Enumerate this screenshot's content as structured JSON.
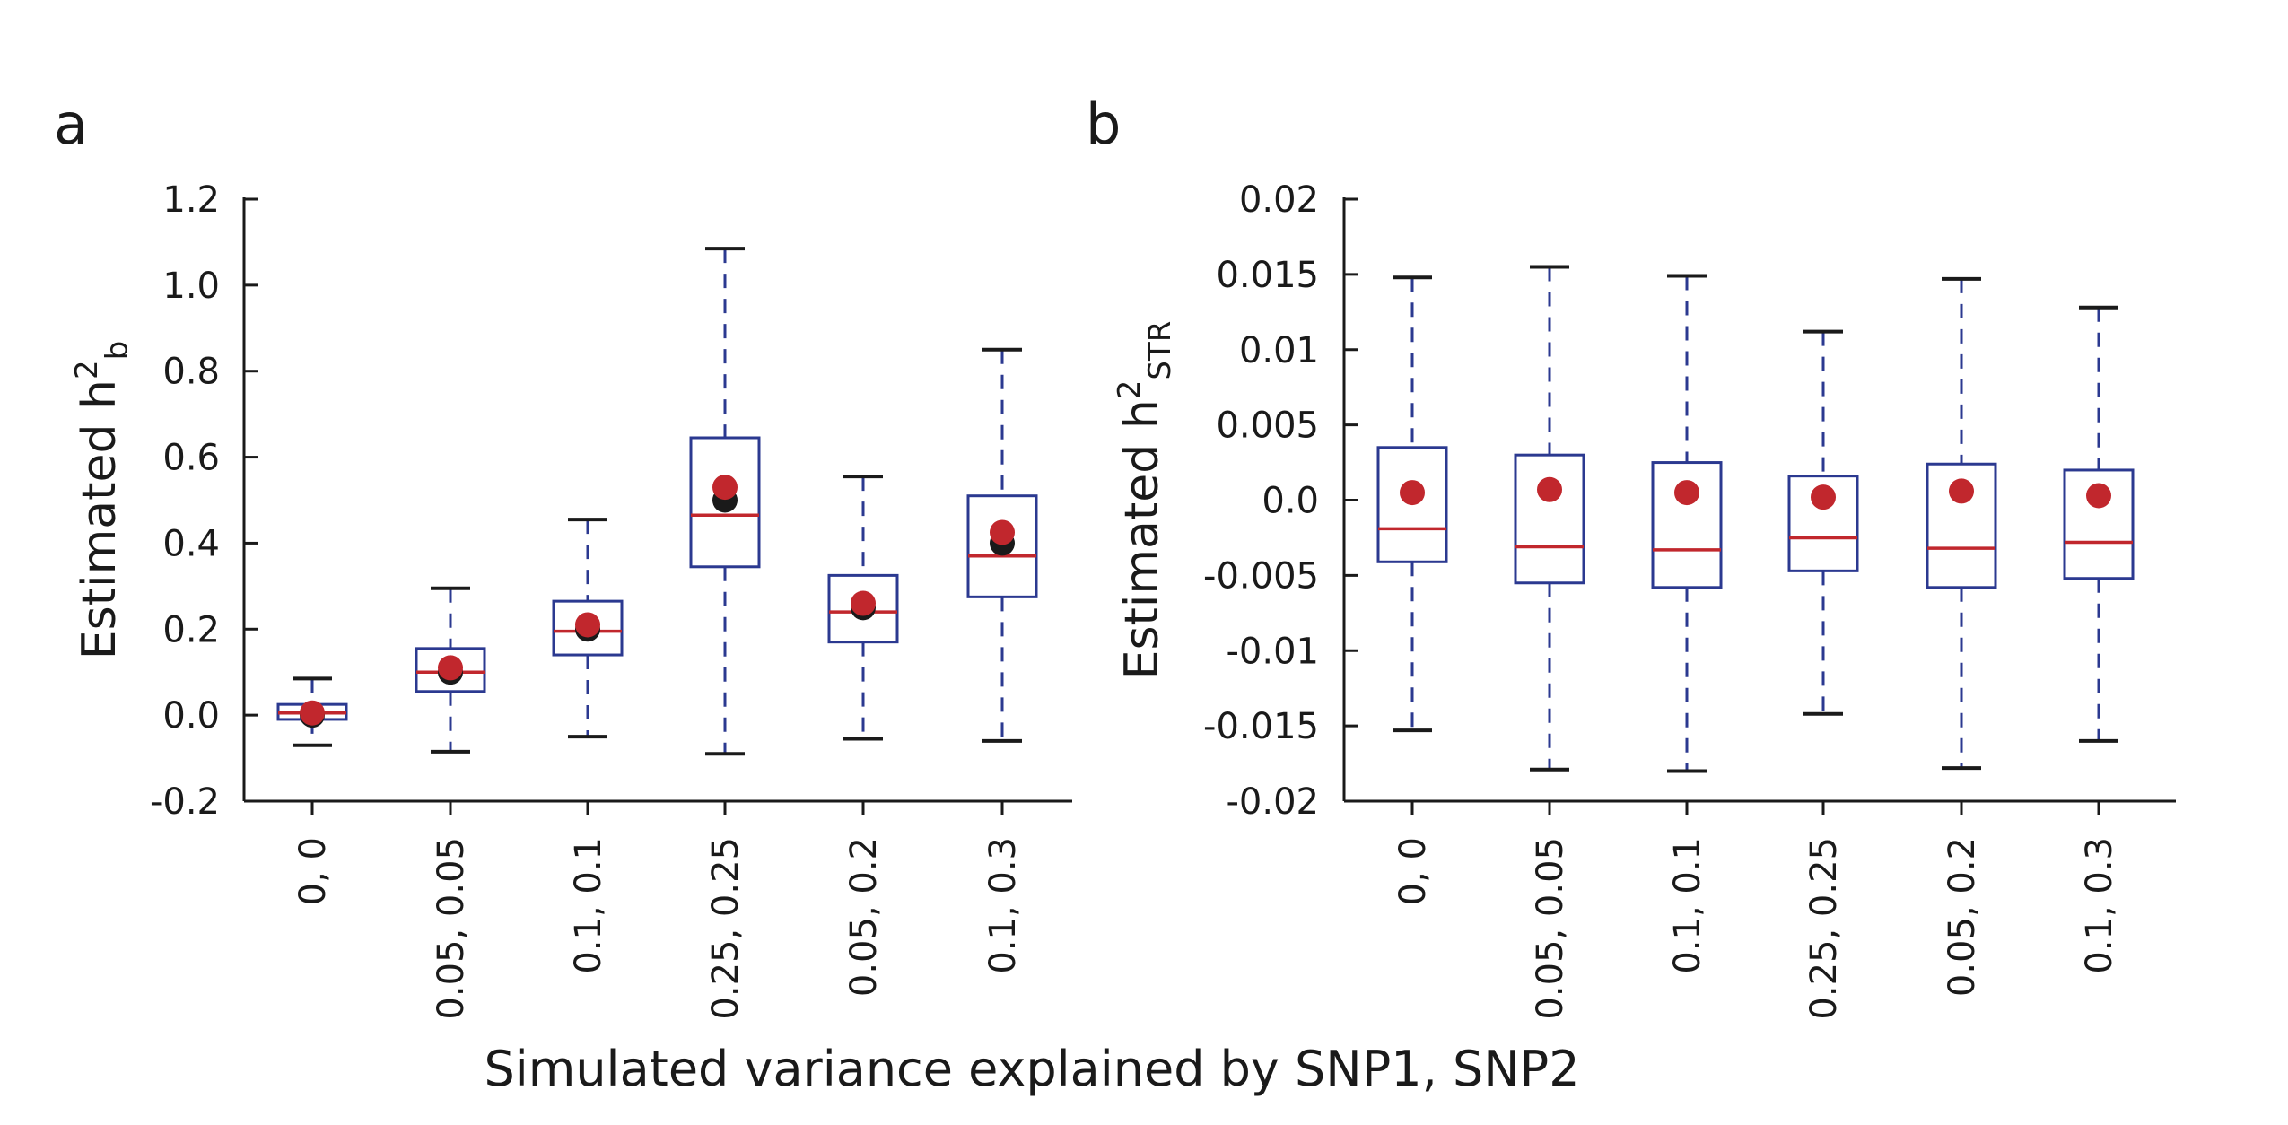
{
  "figure": {
    "xlabel": "Simulated variance explained by SNP1, SNP2",
    "colors": {
      "box": "#2b3990",
      "median": "#c1272d",
      "red_dot": "#c1272d",
      "black_dot": "#1a1a1a",
      "axis": "#1a1a1a"
    }
  },
  "chart_data": [
    {
      "type": "box",
      "panel_label": "a",
      "ylabel_main": "Estimated h",
      "ylabel_sup": "2",
      "ylabel_sub": "b",
      "ylim": [
        -0.2,
        1.2
      ],
      "yticks": [
        -0.2,
        0.0,
        0.2,
        0.4,
        0.6,
        0.8,
        1.0,
        1.2
      ],
      "ytick_labels": [
        "-0.2",
        "0.0",
        "0.2",
        "0.4",
        "0.6",
        "0.8",
        "1.0",
        "1.2"
      ],
      "categories": [
        "0, 0",
        "0.05, 0.05",
        "0.1, 0.1",
        "0.25, 0.25",
        "0.05, 0.2",
        "0.1, 0.3"
      ],
      "boxes": [
        {
          "whisker_low": -0.07,
          "q1": -0.01,
          "median": 0.005,
          "q3": 0.025,
          "whisker_high": 0.085,
          "black_dot": 0.0,
          "red_dot": 0.005
        },
        {
          "whisker_low": -0.085,
          "q1": 0.055,
          "median": 0.1,
          "q3": 0.155,
          "whisker_high": 0.295,
          "black_dot": 0.1,
          "red_dot": 0.11
        },
        {
          "whisker_low": -0.05,
          "q1": 0.14,
          "median": 0.195,
          "q3": 0.265,
          "whisker_high": 0.455,
          "black_dot": 0.2,
          "red_dot": 0.21
        },
        {
          "whisker_low": -0.09,
          "q1": 0.345,
          "median": 0.465,
          "q3": 0.645,
          "whisker_high": 1.085,
          "black_dot": 0.5,
          "red_dot": 0.53
        },
        {
          "whisker_low": -0.055,
          "q1": 0.17,
          "median": 0.24,
          "q3": 0.325,
          "whisker_high": 0.555,
          "black_dot": 0.25,
          "red_dot": 0.26
        },
        {
          "whisker_low": -0.06,
          "q1": 0.275,
          "median": 0.37,
          "q3": 0.51,
          "whisker_high": 0.85,
          "black_dot": 0.4,
          "red_dot": 0.425
        }
      ]
    },
    {
      "type": "box",
      "panel_label": "b",
      "ylabel_main": "Estimated h",
      "ylabel_sup": "2",
      "ylabel_sub": "STR",
      "ylim": [
        -0.02,
        0.02
      ],
      "yticks": [
        -0.02,
        -0.015,
        -0.01,
        -0.005,
        0.0,
        0.005,
        0.01,
        0.015,
        0.02
      ],
      "ytick_labels": [
        "-0.02",
        "-0.015",
        "-0.01",
        "-0.005",
        "0.0",
        "0.005",
        "0.01",
        "0.015",
        "0.02"
      ],
      "categories": [
        "0, 0",
        "0.05, 0.05",
        "0.1, 0.1",
        "0.25, 0.25",
        "0.05, 0.2",
        "0.1, 0.3"
      ],
      "boxes": [
        {
          "whisker_low": -0.0153,
          "q1": -0.0041,
          "median": -0.0019,
          "q3": 0.0035,
          "whisker_high": 0.0148,
          "red_dot": 0.0005
        },
        {
          "whisker_low": -0.0179,
          "q1": -0.0055,
          "median": -0.0031,
          "q3": 0.003,
          "whisker_high": 0.0155,
          "red_dot": 0.0007
        },
        {
          "whisker_low": -0.018,
          "q1": -0.0058,
          "median": -0.0033,
          "q3": 0.0025,
          "whisker_high": 0.0149,
          "red_dot": 0.0005
        },
        {
          "whisker_low": -0.0142,
          "q1": -0.0047,
          "median": -0.0025,
          "q3": 0.0016,
          "whisker_high": 0.0112,
          "red_dot": 0.0002
        },
        {
          "whisker_low": -0.0178,
          "q1": -0.0058,
          "median": -0.0032,
          "q3": 0.0024,
          "whisker_high": 0.0147,
          "red_dot": 0.0006
        },
        {
          "whisker_low": -0.016,
          "q1": -0.0052,
          "median": -0.0028,
          "q3": 0.002,
          "whisker_high": 0.0128,
          "red_dot": 0.0003
        }
      ]
    }
  ]
}
